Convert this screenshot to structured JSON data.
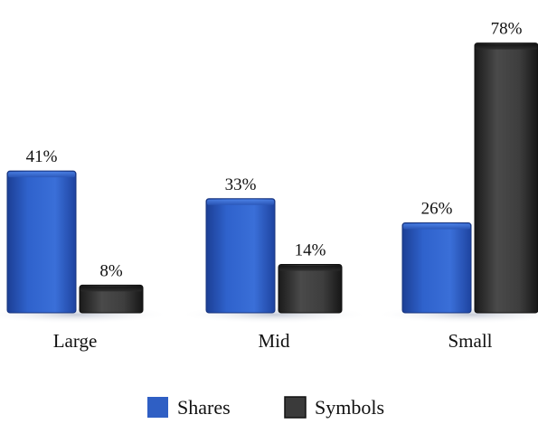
{
  "chart_data": {
    "type": "bar",
    "categories": [
      "Large",
      "Mid",
      "Small"
    ],
    "series": [
      {
        "name": "Shares",
        "values": [
          41,
          33,
          26
        ],
        "labels": [
          "41%",
          "33%",
          "26%"
        ],
        "color": "#2f5fc4"
      },
      {
        "name": "Symbols",
        "values": [
          8,
          14,
          78
        ],
        "labels": [
          "8%",
          "14%",
          "78%"
        ],
        "color": "#3a3a3a"
      }
    ],
    "ylim": [
      0,
      80
    ],
    "grid": false,
    "legend": "bottom-center"
  }
}
